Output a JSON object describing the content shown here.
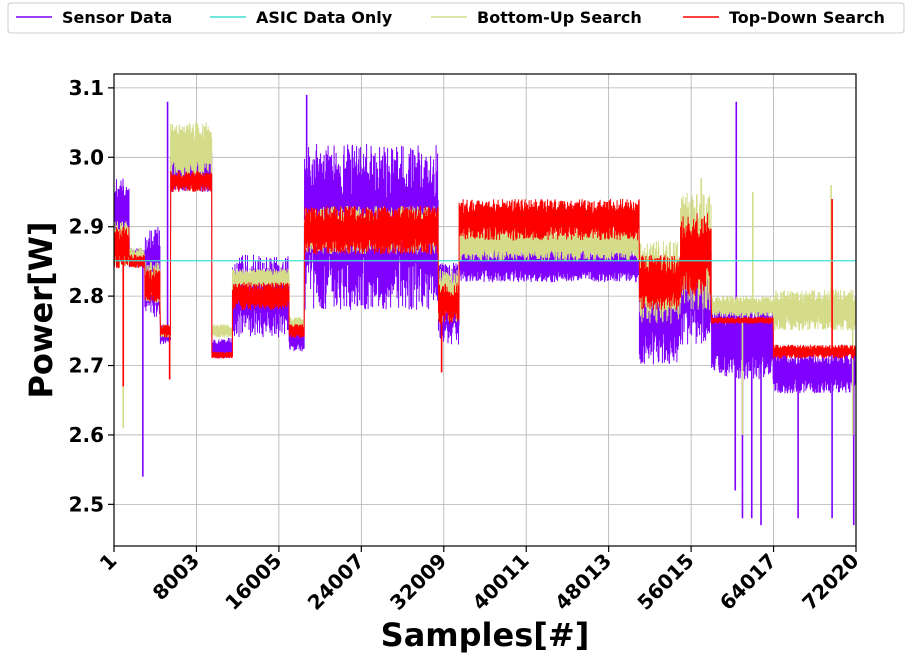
{
  "chart_data": {
    "type": "line",
    "xlabel": "Samples[#]",
    "ylabel": "Power[W]",
    "xlim": [
      1,
      72020
    ],
    "ylim": [
      2.44,
      3.12
    ],
    "x_ticks": [
      1,
      8003,
      16005,
      24007,
      32009,
      40011,
      48013,
      56015,
      64017,
      72020
    ],
    "x_tick_labels": [
      "1",
      "8003",
      "16005",
      "24007",
      "32009",
      "40011",
      "48013",
      "56015",
      "64017",
      "72020"
    ],
    "y_ticks": [
      2.5,
      2.6,
      2.7,
      2.8,
      2.9,
      3.0,
      3.1
    ],
    "y_tick_labels": [
      "2.5",
      "2.6",
      "2.7",
      "2.8",
      "2.9",
      "3.0",
      "3.1"
    ],
    "grid": true,
    "legend_position": "top (above plot)",
    "series": [
      {
        "name": "Sensor Data",
        "color": "#7f00ff",
        "segments": [
          {
            "x": [
              1,
              1500
            ],
            "low": 2.86,
            "high": 2.97
          },
          {
            "x": [
              1500,
              3000
            ],
            "low": 2.84,
            "high": 2.87
          },
          {
            "x": [
              3000,
              4500
            ],
            "low": 2.77,
            "high": 2.9
          },
          {
            "x": [
              4500,
              5500
            ],
            "low": 2.73,
            "high": 2.76
          },
          {
            "x": [
              5500,
              9500
            ],
            "low": 2.95,
            "high": 3.02
          },
          {
            "x": [
              9500,
              11500
            ],
            "low": 2.71,
            "high": 2.74
          },
          {
            "x": [
              11500,
              17000
            ],
            "low": 2.74,
            "high": 2.86
          },
          {
            "x": [
              17000,
              18500
            ],
            "low": 2.72,
            "high": 2.76
          },
          {
            "x": [
              18500,
              31500
            ],
            "low": 2.78,
            "high": 3.02
          },
          {
            "x": [
              31500,
              33500
            ],
            "low": 2.73,
            "high": 2.85
          },
          {
            "x": [
              33500,
              51000
            ],
            "low": 2.82,
            "high": 2.87
          },
          {
            "x": [
              51000,
              55000
            ],
            "low": 2.7,
            "high": 2.84
          },
          {
            "x": [
              55000,
              58000
            ],
            "low": 2.73,
            "high": 2.9
          },
          {
            "x": [
              58000,
              64000
            ],
            "low": 2.68,
            "high": 2.79
          },
          {
            "x": [
              64000,
              72020
            ],
            "low": 2.66,
            "high": 2.72
          }
        ],
        "spikes": [
          {
            "x": 2800,
            "y": 2.54
          },
          {
            "x": 5200,
            "y": 3.08
          },
          {
            "x": 18700,
            "y": 3.09
          },
          {
            "x": 60400,
            "y": 3.08
          },
          {
            "x": 60300,
            "y": 2.52
          },
          {
            "x": 61000,
            "y": 2.48
          },
          {
            "x": 61900,
            "y": 2.48
          },
          {
            "x": 62800,
            "y": 2.47
          },
          {
            "x": 66400,
            "y": 2.48
          },
          {
            "x": 69700,
            "y": 2.48
          },
          {
            "x": 71800,
            "y": 2.47
          }
        ]
      },
      {
        "name": "ASIC Data Only",
        "color": "#40e0d0",
        "x": [
          1,
          72020
        ],
        "y": [
          2.851,
          2.851
        ]
      },
      {
        "name": "Bottom-Up Search",
        "color": "#d4dc8a",
        "segments": [
          {
            "x": [
              1,
              1500
            ],
            "low": 2.84,
            "high": 2.91
          },
          {
            "x": [
              1500,
              3000
            ],
            "low": 2.84,
            "high": 2.87
          },
          {
            "x": [
              3000,
              4500
            ],
            "low": 2.79,
            "high": 2.85
          },
          {
            "x": [
              4500,
              5500
            ],
            "low": 2.74,
            "high": 2.76
          },
          {
            "x": [
              5500,
              9500
            ],
            "low": 2.97,
            "high": 3.05
          },
          {
            "x": [
              9500,
              11500
            ],
            "low": 2.74,
            "high": 2.76
          },
          {
            "x": [
              11500,
              17000
            ],
            "low": 2.81,
            "high": 2.84
          },
          {
            "x": [
              17000,
              18500
            ],
            "low": 2.75,
            "high": 2.77
          },
          {
            "x": [
              18500,
              31500
            ],
            "low": 2.86,
            "high": 2.93
          },
          {
            "x": [
              31500,
              33500
            ],
            "low": 2.76,
            "high": 2.84
          },
          {
            "x": [
              33500,
              51000
            ],
            "low": 2.85,
            "high": 2.9
          },
          {
            "x": [
              51000,
              55000
            ],
            "low": 2.76,
            "high": 2.88
          },
          {
            "x": [
              55000,
              58000
            ],
            "low": 2.78,
            "high": 2.95
          },
          {
            "x": [
              58000,
              64000
            ],
            "low": 2.77,
            "high": 2.8
          },
          {
            "x": [
              64000,
              72020
            ],
            "low": 2.75,
            "high": 2.81
          }
        ],
        "spikes": [
          {
            "x": 900,
            "y": 2.61
          },
          {
            "x": 57000,
            "y": 2.97
          },
          {
            "x": 62000,
            "y": 2.95
          },
          {
            "x": 61000,
            "y": 2.6
          },
          {
            "x": 69600,
            "y": 2.96
          },
          {
            "x": 71700,
            "y": 2.6
          }
        ]
      },
      {
        "name": "Top-Down Search",
        "color": "#ff0000",
        "segments": [
          {
            "x": [
              1,
              1500
            ],
            "low": 2.84,
            "high": 2.9
          },
          {
            "x": [
              1500,
              3000
            ],
            "low": 2.84,
            "high": 2.86
          },
          {
            "x": [
              3000,
              4500
            ],
            "low": 2.79,
            "high": 2.84
          },
          {
            "x": [
              4500,
              5500
            ],
            "low": 2.74,
            "high": 2.76
          },
          {
            "x": [
              5500,
              9500
            ],
            "low": 2.95,
            "high": 2.98
          },
          {
            "x": [
              9500,
              11500
            ],
            "low": 2.71,
            "high": 2.72
          },
          {
            "x": [
              11500,
              17000
            ],
            "low": 2.78,
            "high": 2.82
          },
          {
            "x": [
              17000,
              18500
            ],
            "low": 2.74,
            "high": 2.76
          },
          {
            "x": [
              18500,
              31500
            ],
            "low": 2.86,
            "high": 2.93
          },
          {
            "x": [
              31500,
              33500
            ],
            "low": 2.76,
            "high": 2.82
          },
          {
            "x": [
              33500,
              51000
            ],
            "low": 2.88,
            "high": 2.94
          },
          {
            "x": [
              51000,
              55000
            ],
            "low": 2.78,
            "high": 2.86
          },
          {
            "x": [
              55000,
              58000
            ],
            "low": 2.8,
            "high": 2.92
          },
          {
            "x": [
              58000,
              64000
            ],
            "low": 2.76,
            "high": 2.77
          },
          {
            "x": [
              64000,
              72020
            ],
            "low": 2.71,
            "high": 2.73
          }
        ],
        "spikes": [
          {
            "x": 900,
            "y": 2.67
          },
          {
            "x": 5400,
            "y": 2.68
          },
          {
            "x": 31800,
            "y": 2.69
          },
          {
            "x": 69700,
            "y": 2.94
          }
        ]
      }
    ]
  }
}
